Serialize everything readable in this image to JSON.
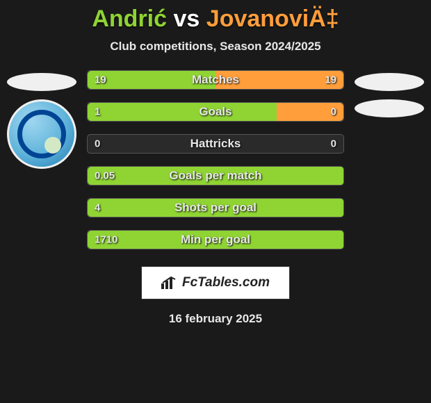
{
  "title": {
    "player1": "Andrić",
    "vs": "vs",
    "player2": "JovanoviÄ‡"
  },
  "subtitle": "Club competitions, Season 2024/2025",
  "colors": {
    "p1": "#8fd433",
    "p2": "#ff9e3b",
    "bar_border": "#555555",
    "bar_bg": "#2a2a2a",
    "page_bg": "#1a1a1a",
    "text": "#e8e8e8"
  },
  "stats": [
    {
      "label": "Matches",
      "left_val": "19",
      "right_val": "19",
      "left_pct": 50,
      "right_pct": 50
    },
    {
      "label": "Goals",
      "left_val": "1",
      "right_val": "0",
      "left_pct": 74,
      "right_pct": 26
    },
    {
      "label": "Hattricks",
      "left_val": "0",
      "right_val": "0",
      "left_pct": 0,
      "right_pct": 0
    },
    {
      "label": "Goals per match",
      "left_val": "0.05",
      "right_val": "",
      "left_pct": 100,
      "right_pct": 0
    },
    {
      "label": "Shots per goal",
      "left_val": "4",
      "right_val": "",
      "left_pct": 100,
      "right_pct": 0
    },
    {
      "label": "Min per goal",
      "left_val": "1710",
      "right_val": "",
      "left_pct": 100,
      "right_pct": 0
    }
  ],
  "watermark": "FcTables.com",
  "date": "16 february 2025"
}
